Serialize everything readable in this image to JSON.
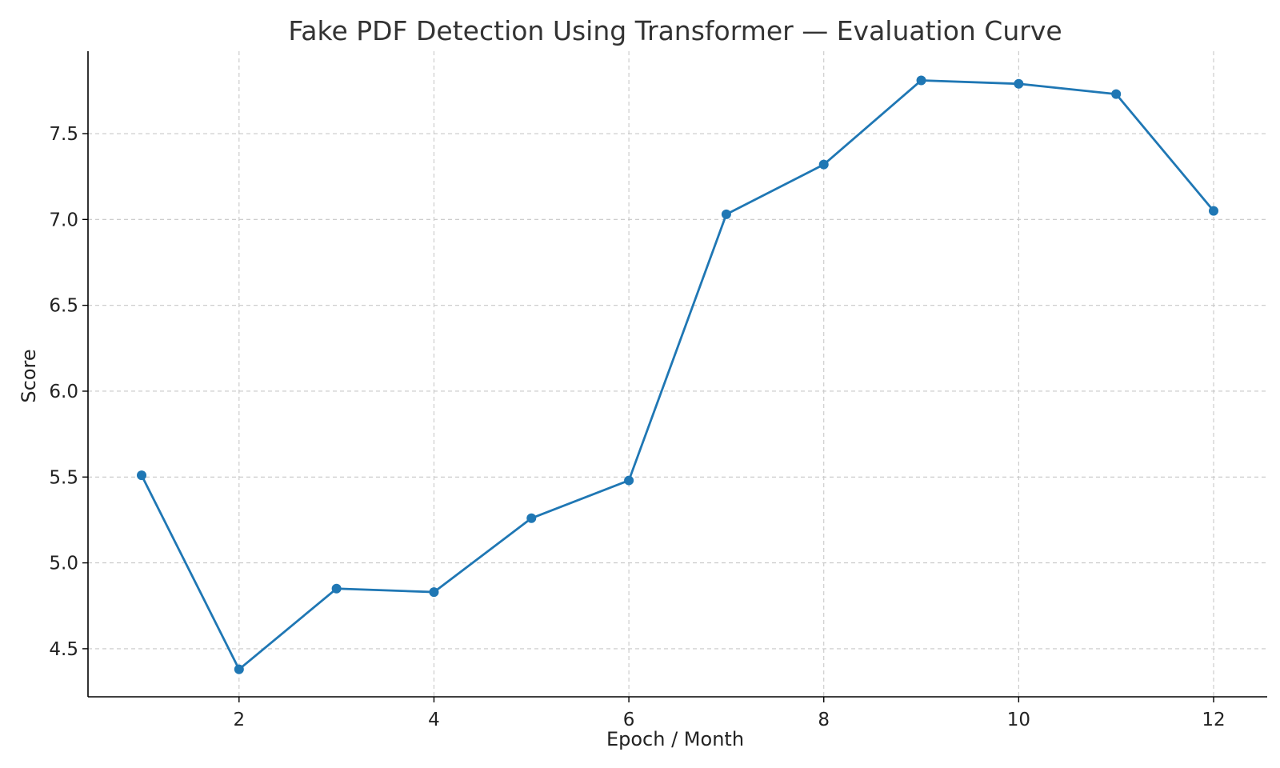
{
  "chart_data": {
    "type": "line",
    "title": "Fake PDF Detection Using Transformer — Evaluation Curve",
    "xlabel": "Epoch / Month",
    "ylabel": "Score",
    "x": [
      1,
      2,
      3,
      4,
      5,
      6,
      7,
      8,
      9,
      10,
      11,
      12
    ],
    "series": [
      {
        "values": [
          5.51,
          4.38,
          4.85,
          4.83,
          5.26,
          5.48,
          7.03,
          7.32,
          7.81,
          7.79,
          7.73,
          7.05
        ],
        "color": "#1f77b4"
      }
    ],
    "xlim": [
      0.45,
      12.55
    ],
    "ylim": [
      4.22,
      7.98
    ],
    "xticks": [
      2,
      4,
      6,
      8,
      10,
      12
    ],
    "yticks": [
      4.5,
      5.0,
      5.5,
      6.0,
      6.5,
      7.0,
      7.5
    ],
    "ytick_labels": [
      "4.5",
      "5.0",
      "5.5",
      "6.0",
      "6.5",
      "7.0",
      "7.5"
    ],
    "grid": true,
    "marker": "circle"
  }
}
